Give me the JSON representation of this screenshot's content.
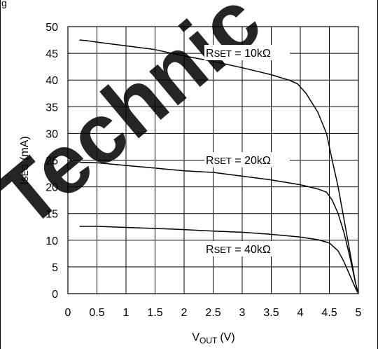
{
  "header_fragment": "g",
  "watermark": "Technic",
  "chart_data": {
    "type": "line",
    "x_axis": {
      "label_main": "V",
      "label_sub": "OUT",
      "label_unit": "(V)",
      "range": [
        0,
        5
      ],
      "ticks": [
        0,
        0.5,
        1,
        1.5,
        2,
        2.5,
        3,
        3.5,
        4,
        4.5,
        5
      ],
      "tick_labels": [
        "0",
        "0.5",
        "1",
        "1.5",
        "2",
        "2.5",
        "3",
        "3.5",
        "4",
        "4.5",
        "5"
      ]
    },
    "y_axis": {
      "label_main": "I",
      "label_sub": "SEG",
      "label_unit": "(mA)",
      "range": [
        0,
        50
      ],
      "ticks": [
        0,
        5,
        10,
        15,
        20,
        25,
        30,
        35,
        40,
        45,
        50
      ],
      "tick_labels": [
        "0",
        "5",
        "10",
        "15",
        "20",
        "25",
        "30",
        "35",
        "40",
        "45",
        "50"
      ]
    },
    "grid": true,
    "series": [
      {
        "label_prefix": "R",
        "label_sub": "SET",
        "label_value": " = 10kΩ",
        "points": [
          [
            0.2,
            47.5
          ],
          [
            0.3,
            47.4
          ],
          [
            0.5,
            47.1
          ],
          [
            1.0,
            46.4
          ],
          [
            1.5,
            45.7
          ],
          [
            2.0,
            44.5
          ],
          [
            2.5,
            43.5
          ],
          [
            3.0,
            42.3
          ],
          [
            3.5,
            41.0
          ],
          [
            3.8,
            40.0
          ],
          [
            3.95,
            39.3
          ],
          [
            4.1,
            37.5
          ],
          [
            4.3,
            34.0
          ],
          [
            4.45,
            30.0
          ],
          [
            4.55,
            25.0
          ],
          [
            4.65,
            20.0
          ],
          [
            4.75,
            14.0
          ],
          [
            4.85,
            8.0
          ],
          [
            4.95,
            2.0
          ],
          [
            5.0,
            0
          ]
        ]
      },
      {
        "label_prefix": "R",
        "label_sub": "SET",
        "label_value": " = 20kΩ",
        "points": [
          [
            0.2,
            24.6
          ],
          [
            0.5,
            24.5
          ],
          [
            1.0,
            24.0
          ],
          [
            1.5,
            23.5
          ],
          [
            2.0,
            23.0
          ],
          [
            2.5,
            22.7
          ],
          [
            3.0,
            22.0
          ],
          [
            3.5,
            21.3
          ],
          [
            4.0,
            20.4
          ],
          [
            4.3,
            19.6
          ],
          [
            4.45,
            19.0
          ],
          [
            4.55,
            17.5
          ],
          [
            4.65,
            15.0
          ],
          [
            4.75,
            11.5
          ],
          [
            4.85,
            7.0
          ],
          [
            4.95,
            2.0
          ],
          [
            5.0,
            0
          ]
        ]
      },
      {
        "label_prefix": "R",
        "label_sub": "SET",
        "label_value": " = 40kΩ",
        "points": [
          [
            0.2,
            12.6
          ],
          [
            0.5,
            12.6
          ],
          [
            1.0,
            12.4
          ],
          [
            1.5,
            12.2
          ],
          [
            2.0,
            12.0
          ],
          [
            2.5,
            11.7
          ],
          [
            3.0,
            11.5
          ],
          [
            3.5,
            11.1
          ],
          [
            4.0,
            10.6
          ],
          [
            4.3,
            10.1
          ],
          [
            4.5,
            9.5
          ],
          [
            4.65,
            8.0
          ],
          [
            4.75,
            6.0
          ],
          [
            4.85,
            3.5
          ],
          [
            4.95,
            1.0
          ],
          [
            5.0,
            0
          ]
        ]
      }
    ]
  }
}
